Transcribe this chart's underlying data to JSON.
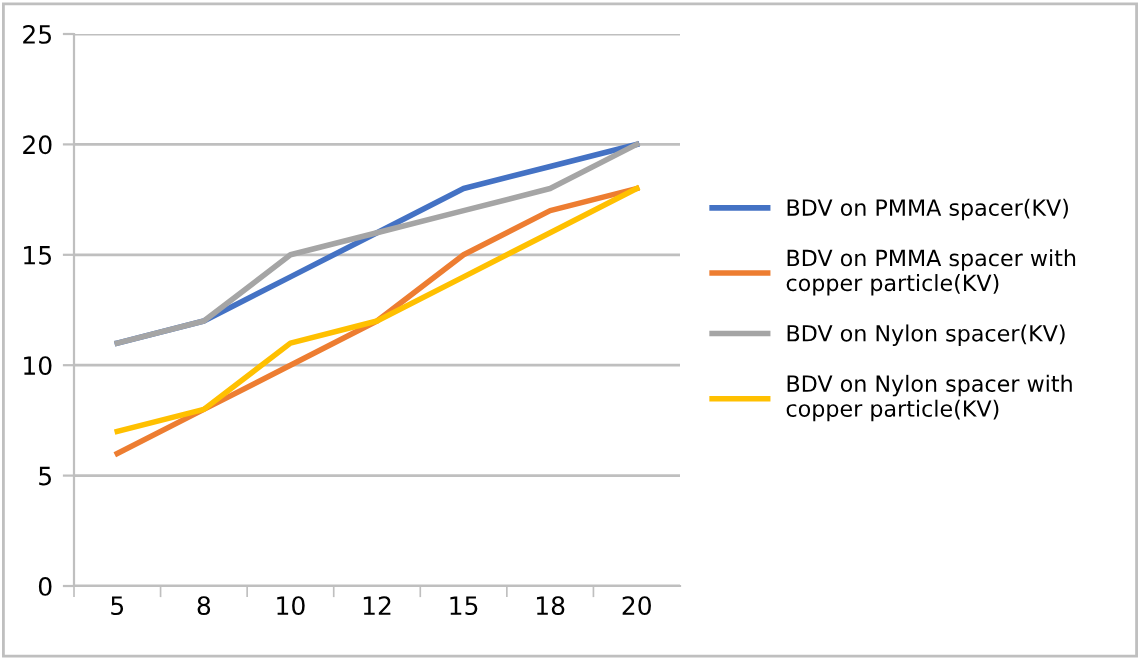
{
  "chart_data": {
    "type": "line",
    "categories": [
      "5",
      "8",
      "10",
      "12",
      "15",
      "18",
      "20"
    ],
    "series": [
      {
        "name": "BDV on PMMA spacer(KV)",
        "color": "#4472c4",
        "values": [
          11,
          12,
          14,
          16,
          18,
          19,
          20
        ]
      },
      {
        "name": "BDV on PMMA spacer with\ncopper particle(KV)",
        "color": "#ed7d31",
        "values": [
          6,
          8,
          10,
          12,
          15,
          17,
          18
        ]
      },
      {
        "name": "BDV on Nylon spacer(KV)",
        "color": "#a5a5a5",
        "values": [
          11,
          12,
          15,
          16,
          17,
          18,
          20
        ]
      },
      {
        "name": "BDV on Nylon spacer with\ncopper particle(KV)",
        "color": "#ffc000",
        "values": [
          7,
          8,
          11,
          12,
          14,
          16,
          18
        ]
      }
    ],
    "ylim": [
      0,
      25
    ],
    "yticks": [
      0,
      5,
      10,
      15,
      20,
      25
    ],
    "grid": "y",
    "legend": "right",
    "marker": "none",
    "line_style": "solid"
  }
}
